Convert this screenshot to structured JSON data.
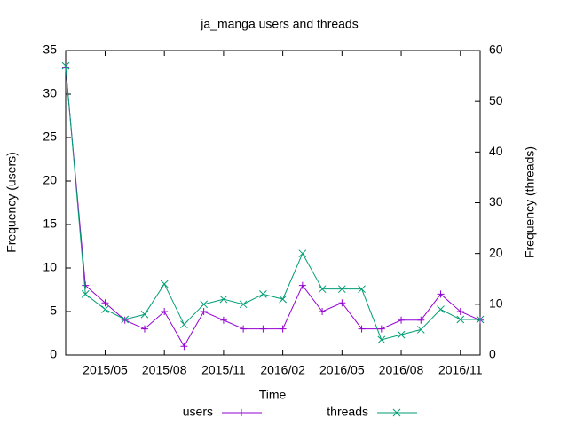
{
  "chart_data": {
    "type": "line",
    "title": "ja_manga users and threads",
    "x_label": "Time",
    "y_label": "Frequency (users)",
    "y2_label": "Frequency (threads)",
    "x": [
      "2015/03",
      "2015/04",
      "2015/05",
      "2015/06",
      "2015/07",
      "2015/08",
      "2015/09",
      "2015/10",
      "2015/11",
      "2015/12",
      "2016/01",
      "2016/02",
      "2016/03",
      "2016/04",
      "2016/05",
      "2016/06",
      "2016/07",
      "2016/08",
      "2016/09",
      "2016/10",
      "2016/11",
      "2016/12"
    ],
    "xlim": [
      "2015/03",
      "2016/12"
    ],
    "xticks": [
      "2015/05",
      "2015/08",
      "2015/11",
      "2016/02",
      "2016/05",
      "2016/08",
      "2016/11"
    ],
    "ylim": [
      0,
      35
    ],
    "yticks": [
      0,
      5,
      10,
      15,
      20,
      25,
      30,
      35
    ],
    "y2lim": [
      0,
      60
    ],
    "y2ticks": [
      0,
      10,
      20,
      30,
      40,
      50,
      60
    ],
    "legend": "bottom",
    "series": [
      {
        "name": "users",
        "color": "#9400d3",
        "marker": "+",
        "values": [
          33,
          8,
          6,
          4,
          3,
          5,
          1,
          5,
          4,
          3,
          3,
          3,
          8,
          5,
          6,
          3,
          3,
          4,
          4,
          7,
          5,
          4
        ]
      },
      {
        "name": "threads",
        "color": "#009e73",
        "marker": "x",
        "axis": "y2",
        "values": [
          57,
          12,
          9,
          7,
          8,
          14,
          6,
          10,
          11,
          10,
          12,
          11,
          20,
          13,
          13,
          13,
          3,
          4,
          5,
          9,
          7,
          7
        ]
      }
    ]
  }
}
